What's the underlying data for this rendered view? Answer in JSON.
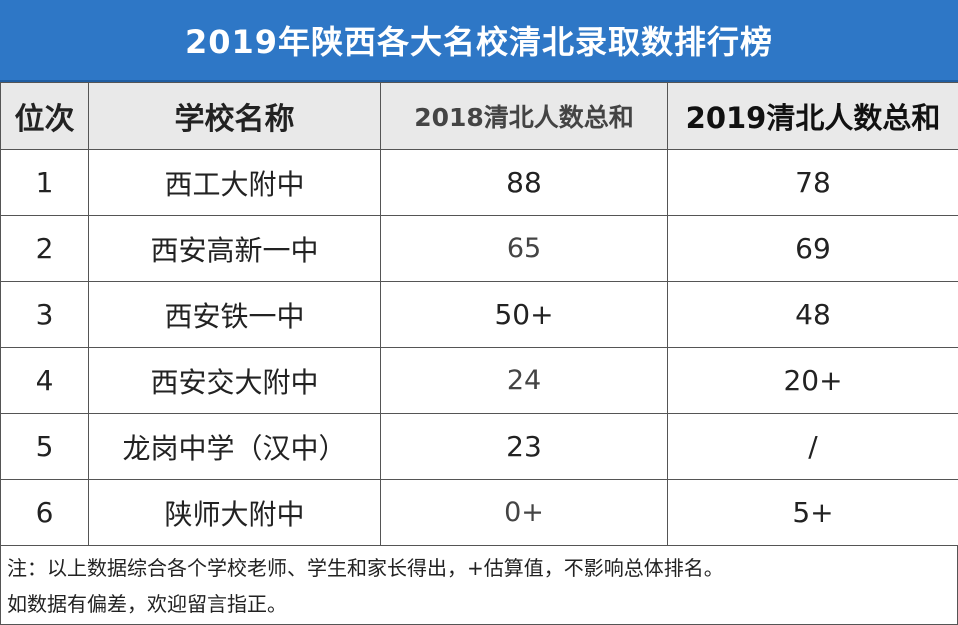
{
  "title": "2019年陕西各大名校清北录取数排行榜",
  "headers": {
    "rank": "位次",
    "school": "学校名称",
    "y2018": "2018清北人数总和",
    "y2019": "2019清北人数总和"
  },
  "rows": [
    {
      "rank": "1",
      "school": "西工大附中",
      "y2018": "88",
      "y2019": "78"
    },
    {
      "rank": "2",
      "school": "西安高新一中",
      "y2018": "65",
      "y2019": "69"
    },
    {
      "rank": "3",
      "school": "西安铁一中",
      "y2018": "50+",
      "y2019": "48"
    },
    {
      "rank": "4",
      "school": "西安交大附中",
      "y2018": "24",
      "y2019": "20+"
    },
    {
      "rank": "5",
      "school": "龙岗中学（汉中）",
      "y2018": "23",
      "y2019": "/"
    },
    {
      "rank": "6",
      "school": "陕师大附中",
      "y2018": "0+",
      "y2019": "5+"
    }
  ],
  "note": {
    "line1": "注：以上数据综合各个学校老师、学生和家长得出，+估算值，不影响总体排名。",
    "line2": "如数据有偏差，欢迎留言指正。"
  },
  "colors": {
    "title_bg": "#2e77c6",
    "header_bg": "#e9e9e9"
  }
}
